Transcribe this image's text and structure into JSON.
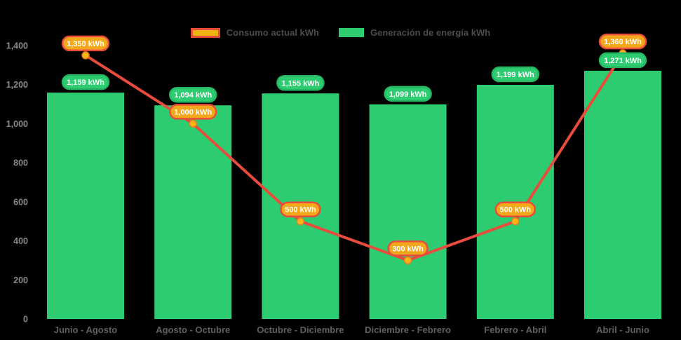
{
  "chart": {
    "background": "#000000",
    "legend": [
      {
        "id": "consumo",
        "label": "Consumo actual kWh",
        "swatch_fill": "#F0B40E",
        "swatch_border": "#E74C3C"
      },
      {
        "id": "generacion",
        "label": "Generación de energía kWh",
        "swatch_fill": "#2ECC71",
        "swatch_border": "#2ECC71"
      }
    ],
    "legend_text_color": "#4A4A4A",
    "axis_tick_color": "#8A8A8A",
    "category_label_color": "#606060",
    "value_label_text_color": "#FFFFFF"
  },
  "chart_data": {
    "type": "bar+line",
    "title": "",
    "xlabel": "",
    "ylabel": "",
    "categories": [
      "Junio - Agosto",
      "Agosto - Octubre",
      "Octubre - Diciembre",
      "Diciembre - Febrero",
      "Febrero - Abril",
      "Abril - Junio"
    ],
    "series": [
      {
        "name": "Generación de energía kWh",
        "type": "bar",
        "color": "#2ECC71",
        "label_bg": "#2ECC71",
        "label_border": "#25B763",
        "values": [
          1159,
          1094,
          1155,
          1099,
          1199,
          1271
        ],
        "labels": [
          "1,159 kWh",
          "1,094 kWh",
          "1,155 kWh",
          "1,099 kWh",
          "1,199 kWh",
          "1,271 kWh"
        ]
      },
      {
        "name": "Consumo actual kWh",
        "type": "line",
        "color": "#E74C3C",
        "marker_fill": "#FDB515",
        "marker_border": "#E67E22",
        "label_bg": "#F3A81B",
        "label_border": "#E74C3C",
        "values": [
          1350,
          1000,
          500,
          300,
          500,
          1360
        ],
        "labels": [
          "1,350 kWh",
          "1,000 kWh",
          "500 kWh",
          "300 kWh",
          "500 kWh",
          "1,360 kWh"
        ]
      }
    ],
    "ylim": [
      0,
      1400
    ],
    "yticks": [
      0,
      200,
      400,
      600,
      800,
      1000,
      1200,
      1400
    ],
    "ytick_labels": [
      "0",
      "200",
      "400",
      "600",
      "800",
      "1,000",
      "1,200",
      "1,400"
    ],
    "grid": false,
    "legend_position": "top-center"
  }
}
